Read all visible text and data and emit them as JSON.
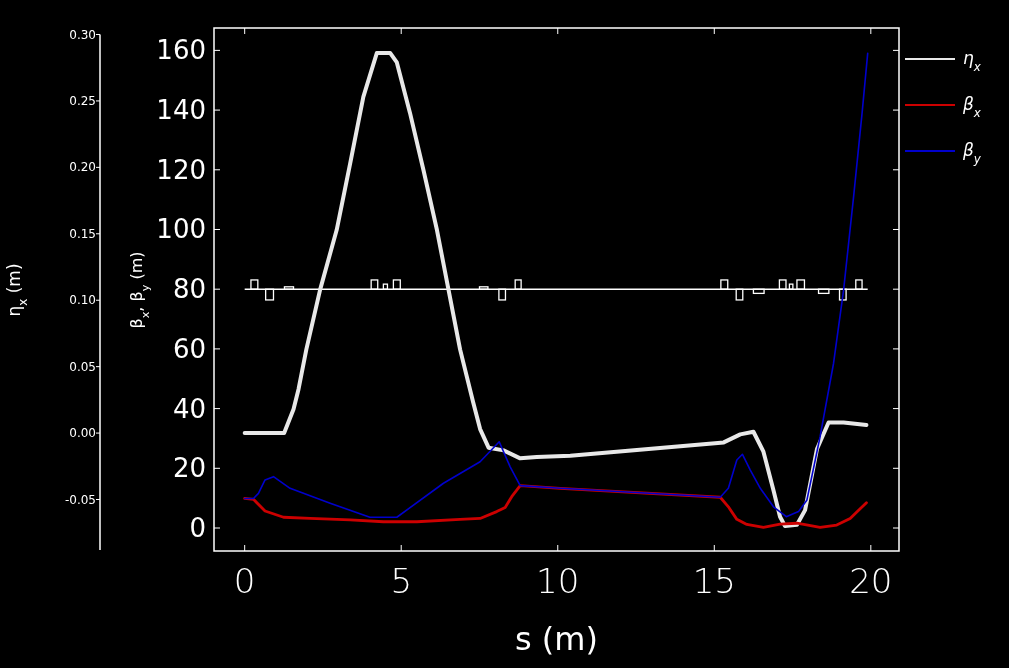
{
  "chart_data": {
    "type": "line",
    "xlabel": "s (m)",
    "ylabel": "β$_{x}$, β$_{y}$ (m)",
    "y2label": "η$_{x}$ (m)",
    "xlim": [
      -0.98,
      20.9
    ],
    "xticks": [
      0,
      5,
      10,
      15,
      20
    ],
    "ylim": [
      -7.7,
      167.5
    ],
    "yticks": [
      0,
      20,
      40,
      60,
      80,
      100,
      120,
      140,
      160
    ],
    "y2lim": [
      -0.088,
      0.3
    ],
    "y2ticks": [
      {
        "value": -0.05,
        "label": "-0.05"
      },
      {
        "value": 0,
        "label": "0.00"
      },
      {
        "value": 0.05,
        "label": "0.05"
      },
      {
        "value": 0.1,
        "label": "0.10"
      },
      {
        "value": 0.15,
        "label": "0.15"
      },
      {
        "value": 0.2,
        "label": "0.20"
      },
      {
        "value": 0.25,
        "label": "0.25"
      },
      {
        "value": 0.3,
        "label": "0.30"
      }
    ],
    "grid": false,
    "legend": "top right",
    "marker": "none",
    "line_style": "solid",
    "ref_lines": [
      {
        "axis": "y",
        "value": 80,
        "color": "#ffffff"
      }
    ],
    "series": [
      {
        "name": "η$_{x}$",
        "color": "#e8e8e8",
        "axis": "y2",
        "x": [
          0,
          1.26,
          1.56,
          1.72,
          1.97,
          2.41,
          2.94,
          3.37,
          3.79,
          4.22,
          4.65,
          4.86,
          5.28,
          5.71,
          6.14,
          6.51,
          6.88,
          7.3,
          7.52,
          7.79,
          8.27,
          8.8,
          9.33,
          10.4,
          15.3,
          15.83,
          16.25,
          16.57,
          16.89,
          17.1,
          17.26,
          17.64,
          17.9,
          18.28,
          18.65,
          19.13,
          19.86
        ],
        "values": [
          0,
          0,
          0.018,
          0.033,
          0.063,
          0.108,
          0.153,
          0.203,
          0.253,
          0.286,
          0.286,
          0.279,
          0.241,
          0.198,
          0.153,
          0.108,
          0.063,
          0.023,
          0.003,
          -0.011,
          -0.013,
          -0.019,
          -0.018,
          -0.017,
          -0.007,
          -0.001,
          0.001,
          -0.014,
          -0.043,
          -0.063,
          -0.07,
          -0.069,
          -0.058,
          -0.012,
          0.008,
          0.008,
          0.006
        ]
      },
      {
        "name": "β$_{x}$",
        "color": "#cc0000",
        "x": [
          0,
          0.28,
          0.65,
          1.24,
          2.09,
          3.37,
          4.43,
          5.5,
          6.88,
          7.52,
          8.05,
          8.32,
          8.53,
          8.8,
          10.08,
          15.19,
          15.45,
          15.72,
          16.04,
          16.57,
          17.1,
          17.64,
          18.38,
          18.91,
          19.34,
          19.86
        ],
        "values": [
          9.9,
          9.6,
          5.7,
          3.6,
          3.2,
          2.7,
          2.1,
          2.1,
          2.9,
          3.2,
          5.5,
          6.9,
          10.5,
          14.2,
          13.3,
          10.3,
          7.1,
          2.9,
          1.2,
          0.2,
          1.3,
          1.6,
          0.2,
          1,
          3.2,
          8.5
        ]
      },
      {
        "name": "β$_{y}$",
        "color": "#0000cc",
        "x": [
          0,
          0.28,
          0.44,
          0.65,
          0.92,
          1.45,
          2.73,
          4,
          4.86,
          6.35,
          7.52,
          8.13,
          8.48,
          8.8,
          10.08,
          15.19,
          15.45,
          15.72,
          15.9,
          16.15,
          16.47,
          16.89,
          17.3,
          17.69,
          17.96,
          18.38,
          18.81,
          19.13,
          19.45,
          19.72,
          19.9
        ],
        "values": [
          9.9,
          9.9,
          11.6,
          16.1,
          17.2,
          13.3,
          8.3,
          3.6,
          3.6,
          15,
          22.2,
          28.9,
          20.5,
          14.2,
          13.3,
          10.3,
          13.3,
          22.8,
          24.7,
          19.4,
          13.3,
          7.1,
          3.8,
          5.5,
          9.4,
          30.6,
          55.2,
          79.7,
          111,
          138.9,
          159
        ]
      }
    ]
  }
}
